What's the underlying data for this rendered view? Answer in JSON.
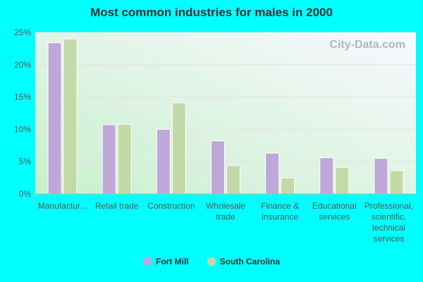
{
  "chart_data": {
    "type": "bar",
    "title": "Most common industries for males in 2000",
    "categories": [
      [
        "Manufactur..."
      ],
      [
        "Retail trade"
      ],
      [
        "Construction"
      ],
      [
        "Wholesale",
        "trade"
      ],
      [
        "Finance &",
        "insurance"
      ],
      [
        "Educational",
        "services"
      ],
      [
        "Professional,",
        "scientific,",
        "technical",
        "services"
      ]
    ],
    "series": [
      {
        "name": "Fort Mill",
        "color": "#bea8d8",
        "values": [
          23.4,
          10.7,
          10.0,
          8.2,
          6.3,
          5.6,
          5.5
        ]
      },
      {
        "name": "South Carolina",
        "color": "#c4d9a8",
        "values": [
          24.0,
          10.8,
          14.1,
          4.4,
          2.5,
          4.1,
          3.6
        ]
      }
    ],
    "yticks": [
      "0%",
      "5%",
      "10%",
      "15%",
      "20%",
      "25%"
    ],
    "ylim": [
      0,
      25
    ],
    "grid": true,
    "legend_placement": "bottom",
    "watermark": "City-Data.com"
  }
}
